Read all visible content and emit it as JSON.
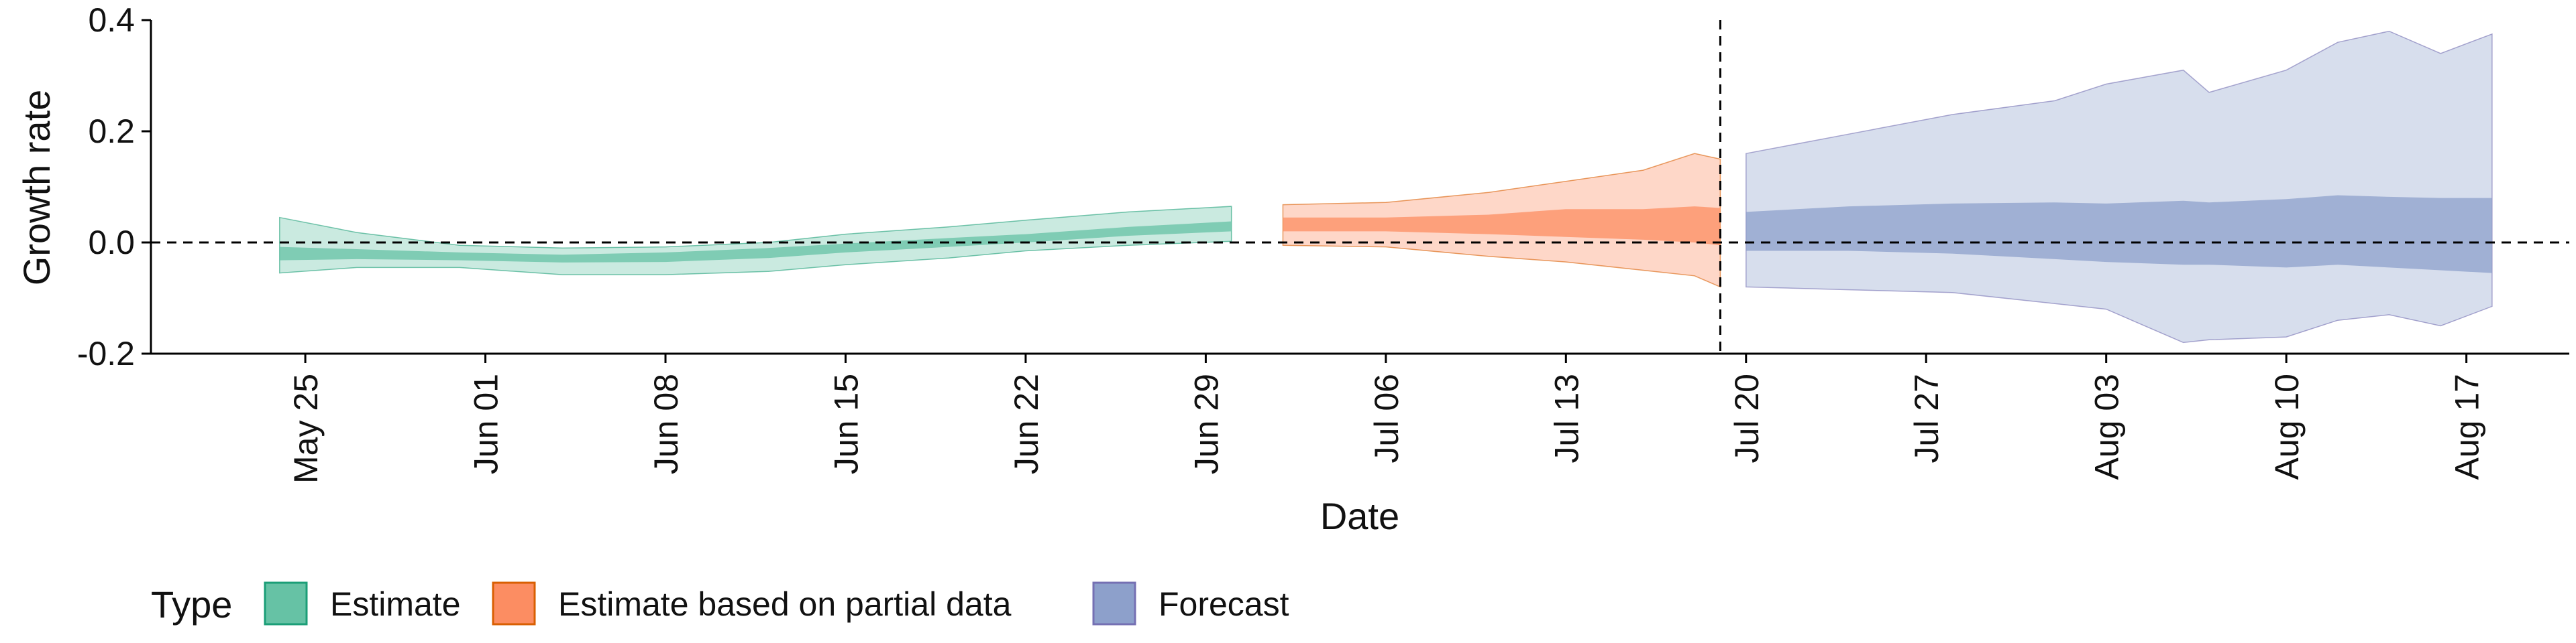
{
  "chart_data": {
    "type": "area",
    "xlabel": "Date",
    "ylabel": "Growth rate",
    "ylim": [
      -0.2,
      0.4
    ],
    "yticks": [
      -0.2,
      0.0,
      0.2,
      0.4
    ],
    "ytick_labels": [
      "-0.2",
      "0.0",
      "0.2",
      "0.4"
    ],
    "xlim": [
      "2020-05-19",
      "2020-08-21"
    ],
    "xticks": [
      "2020-05-25",
      "2020-06-01",
      "2020-06-08",
      "2020-06-15",
      "2020-06-22",
      "2020-06-29",
      "2020-07-06",
      "2020-07-13",
      "2020-07-20",
      "2020-07-27",
      "2020-08-03",
      "2020-08-10",
      "2020-08-17"
    ],
    "xtick_labels": [
      "May 25",
      "Jun 01",
      "Jun 08",
      "Jun 15",
      "Jun 22",
      "Jun 29",
      "Jul 06",
      "Jul 13",
      "Jul 20",
      "Jul 27",
      "Aug 03",
      "Aug 10",
      "Aug 17"
    ],
    "reference_lines": {
      "horizontal_y": 0.0,
      "vertical_x": "2020-07-19",
      "style": "dashed"
    },
    "legend": {
      "title": "Type",
      "position": "bottom-left",
      "entries": [
        "Estimate",
        "Estimate based on partial data",
        "Forecast"
      ]
    },
    "series": [
      {
        "name": "Estimate",
        "color": "#1b9e77",
        "fill_color": "#66c2a5",
        "points": [
          {
            "x": "2020-05-24",
            "lo90": -0.055,
            "lo50": -0.032,
            "hi50": -0.008,
            "hi90": 0.045
          },
          {
            "x": "2020-05-27",
            "lo90": -0.045,
            "lo50": -0.03,
            "hi50": -0.012,
            "hi90": 0.018
          },
          {
            "x": "2020-05-31",
            "lo90": -0.045,
            "lo50": -0.032,
            "hi50": -0.018,
            "hi90": -0.005
          },
          {
            "x": "2020-06-04",
            "lo90": -0.058,
            "lo50": -0.036,
            "hi50": -0.022,
            "hi90": -0.01
          },
          {
            "x": "2020-06-08",
            "lo90": -0.058,
            "lo50": -0.035,
            "hi50": -0.018,
            "hi90": -0.008
          },
          {
            "x": "2020-06-12",
            "lo90": -0.052,
            "lo50": -0.028,
            "hi50": -0.01,
            "hi90": 0.0
          },
          {
            "x": "2020-06-15",
            "lo90": -0.04,
            "lo50": -0.018,
            "hi50": -0.002,
            "hi90": 0.015
          },
          {
            "x": "2020-06-19",
            "lo90": -0.028,
            "lo50": -0.008,
            "hi50": 0.008,
            "hi90": 0.028
          },
          {
            "x": "2020-06-22",
            "lo90": -0.015,
            "lo50": 0.0,
            "hi50": 0.015,
            "hi90": 0.04
          },
          {
            "x": "2020-06-26",
            "lo90": -0.005,
            "lo50": 0.012,
            "hi50": 0.028,
            "hi90": 0.055
          },
          {
            "x": "2020-06-30",
            "lo90": 0.002,
            "lo50": 0.02,
            "hi50": 0.038,
            "hi90": 0.065
          }
        ]
      },
      {
        "name": "Estimate based on partial data",
        "color": "#d95f02",
        "fill_color": "#fc8d62",
        "points": [
          {
            "x": "2020-07-02",
            "lo90": -0.005,
            "lo50": 0.02,
            "hi50": 0.045,
            "hi90": 0.068
          },
          {
            "x": "2020-07-06",
            "lo90": -0.008,
            "lo50": 0.02,
            "hi50": 0.045,
            "hi90": 0.072
          },
          {
            "x": "2020-07-10",
            "lo90": -0.025,
            "lo50": 0.015,
            "hi50": 0.05,
            "hi90": 0.09
          },
          {
            "x": "2020-07-13",
            "lo90": -0.035,
            "lo50": 0.01,
            "hi50": 0.06,
            "hi90": 0.11
          },
          {
            "x": "2020-07-16",
            "lo90": -0.05,
            "lo50": 0.005,
            "hi50": 0.06,
            "hi90": 0.13
          },
          {
            "x": "2020-07-18",
            "lo90": -0.06,
            "lo50": 0.0,
            "hi50": 0.065,
            "hi90": 0.16
          },
          {
            "x": "2020-07-19",
            "lo90": -0.08,
            "lo50": -0.005,
            "hi50": 0.062,
            "hi90": 0.15
          }
        ]
      },
      {
        "name": "Forecast",
        "color": "#7570b3",
        "fill_color": "#8da0cb",
        "points": [
          {
            "x": "2020-07-20",
            "lo90": -0.08,
            "lo50": -0.015,
            "hi50": 0.055,
            "hi90": 0.16
          },
          {
            "x": "2020-07-24",
            "lo90": -0.085,
            "lo50": -0.015,
            "hi50": 0.065,
            "hi90": 0.195
          },
          {
            "x": "2020-07-28",
            "lo90": -0.09,
            "lo50": -0.02,
            "hi50": 0.07,
            "hi90": 0.23
          },
          {
            "x": "2020-08-01",
            "lo90": -0.11,
            "lo50": -0.03,
            "hi50": 0.072,
            "hi90": 0.255
          },
          {
            "x": "2020-08-03",
            "lo90": -0.12,
            "lo50": -0.035,
            "hi50": 0.07,
            "hi90": 0.285
          },
          {
            "x": "2020-08-06",
            "lo90": -0.18,
            "lo50": -0.04,
            "hi50": 0.075,
            "hi90": 0.31
          },
          {
            "x": "2020-08-07",
            "lo90": -0.175,
            "lo50": -0.04,
            "hi50": 0.072,
            "hi90": 0.27
          },
          {
            "x": "2020-08-10",
            "lo90": -0.17,
            "lo50": -0.045,
            "hi50": 0.078,
            "hi90": 0.31
          },
          {
            "x": "2020-08-12",
            "lo90": -0.14,
            "lo50": -0.04,
            "hi50": 0.085,
            "hi90": 0.36
          },
          {
            "x": "2020-08-14",
            "lo90": -0.13,
            "lo50": -0.045,
            "hi50": 0.082,
            "hi90": 0.38
          },
          {
            "x": "2020-08-16",
            "lo90": -0.15,
            "lo50": -0.05,
            "hi50": 0.08,
            "hi90": 0.34
          },
          {
            "x": "2020-08-18",
            "lo90": -0.115,
            "lo50": -0.055,
            "hi50": 0.08,
            "hi90": 0.375
          }
        ]
      }
    ]
  }
}
